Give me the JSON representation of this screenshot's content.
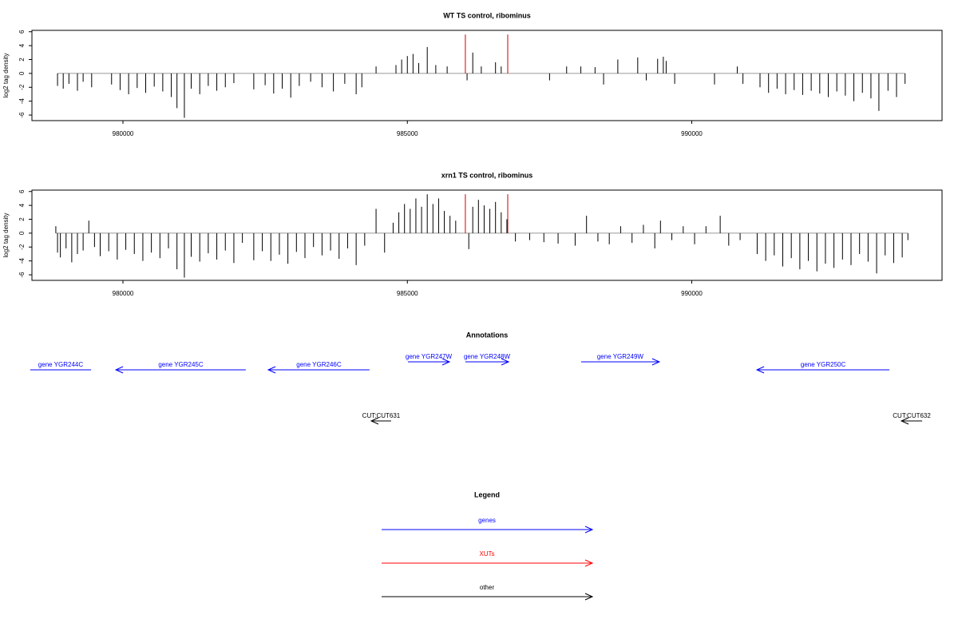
{
  "chart_data": [
    {
      "type": "bar",
      "title": "WT TS control, ribominus",
      "ylabel": "log2 tag density",
      "xlim": [
        978400,
        994400
      ],
      "ylim": [
        -6.8,
        6.2
      ],
      "xticks": [
        980000,
        985000,
        990000
      ],
      "yticks": [
        -6,
        -4,
        -2,
        0,
        2,
        4,
        6
      ],
      "color": "#000000",
      "baseline_color": "#999999",
      "x": [
        978850,
        978950,
        979050,
        979200,
        979300,
        979450,
        979800,
        979950,
        980100,
        980250,
        980400,
        980550,
        980700,
        980850,
        980950,
        981080,
        981200,
        981350,
        981500,
        981650,
        981800,
        981950,
        982300,
        982500,
        982650,
        982800,
        982950,
        983100,
        983300,
        983500,
        983700,
        983900,
        984100,
        984200,
        984450,
        984800,
        984900,
        985000,
        985100,
        985200,
        985350,
        985500,
        985700,
        986050,
        986150,
        986300,
        986550,
        986650,
        987500,
        987800,
        988050,
        988300,
        988450,
        988700,
        989050,
        989200,
        989400,
        989500,
        989550,
        989700,
        990400,
        990800,
        990900,
        991200,
        991350,
        991500,
        991650,
        991800,
        991950,
        992100,
        992250,
        992400,
        992550,
        992700,
        992850,
        993000,
        993150,
        993290,
        993450,
        993600,
        993750
      ],
      "values": [
        -1.8,
        -2.2,
        -1.5,
        -2.5,
        -1.2,
        -2.0,
        -1.6,
        -2.4,
        -3.0,
        -2.1,
        -2.8,
        -1.9,
        -2.6,
        -3.4,
        -5.0,
        -6.4,
        -2.2,
        -3.0,
        -1.8,
        -2.5,
        -2.0,
        -1.4,
        -2.3,
        -1.7,
        -2.9,
        -2.2,
        -3.5,
        -1.8,
        -1.2,
        -2.0,
        -2.6,
        -1.5,
        -3.0,
        -2.0,
        1.0,
        1.2,
        2.0,
        2.5,
        2.8,
        1.5,
        3.8,
        1.2,
        1.0,
        -1.0,
        3.0,
        1.0,
        1.6,
        1.0,
        -1.0,
        1.0,
        1.0,
        0.9,
        -1.6,
        2.0,
        2.3,
        -1.0,
        2.1,
        2.4,
        1.8,
        -1.5,
        -1.6,
        1.0,
        -1.5,
        -2.0,
        -2.8,
        -2.2,
        -3.0,
        -2.4,
        -3.1,
        -2.5,
        -2.9,
        -3.4,
        -2.6,
        -3.2,
        -4.0,
        -2.8,
        -3.6,
        -5.4,
        -2.5,
        -3.4,
        -1.5
      ],
      "highlight": {
        "color": "#cc0000",
        "x": [
          986020,
          986765
        ],
        "values": [
          5.6,
          5.6
        ]
      }
    },
    {
      "type": "bar",
      "title": "xrn1 TS control, ribominus",
      "ylabel": "log2 tag density",
      "xlim": [
        978400,
        994400
      ],
      "ylim": [
        -6.8,
        6.2
      ],
      "xticks": [
        980000,
        985000,
        990000
      ],
      "yticks": [
        -6,
        -4,
        -2,
        0,
        2,
        4,
        6
      ],
      "color": "#000000",
      "baseline_color": "#999999",
      "x": [
        978820,
        978850,
        978900,
        979000,
        979100,
        979200,
        979300,
        979400,
        979500,
        979600,
        979750,
        979900,
        980050,
        980200,
        980350,
        980500,
        980650,
        980800,
        980950,
        981080,
        981200,
        981350,
        981500,
        981650,
        981800,
        981950,
        982100,
        982300,
        982450,
        982600,
        982750,
        982900,
        983050,
        983200,
        983350,
        983500,
        983650,
        983800,
        983950,
        984100,
        984250,
        984450,
        984600,
        984750,
        984850,
        984950,
        985050,
        985150,
        985250,
        985350,
        985450,
        985550,
        985650,
        985750,
        985850,
        986080,
        986150,
        986250,
        986350,
        986450,
        986550,
        986650,
        986750,
        986900,
        987150,
        987400,
        987650,
        987950,
        988150,
        988350,
        988550,
        988750,
        988950,
        989150,
        989350,
        989450,
        989650,
        989850,
        990050,
        990250,
        990500,
        990650,
        990850,
        991150,
        991300,
        991450,
        991600,
        991750,
        991900,
        992050,
        992200,
        992350,
        992500,
        992650,
        992800,
        992950,
        993100,
        993250,
        993400,
        993550,
        993700,
        993800
      ],
      "values": [
        1.0,
        -2.8,
        -3.5,
        -2.2,
        -4.2,
        -3.0,
        -2.5,
        1.8,
        -2.0,
        -3.3,
        -2.6,
        -3.8,
        -2.4,
        -3.0,
        -4.0,
        -2.8,
        -3.6,
        -2.2,
        -5.2,
        -6.4,
        -3.4,
        -4.1,
        -2.9,
        -3.8,
        -2.5,
        -4.3,
        -1.4,
        -3.9,
        -2.6,
        -4.0,
        -3.1,
        -4.4,
        -2.7,
        -3.6,
        -2.0,
        -3.2,
        -2.5,
        -3.7,
        -2.2,
        -4.6,
        -1.8,
        3.5,
        -2.8,
        1.5,
        3.0,
        4.2,
        3.5,
        5.0,
        3.8,
        5.6,
        4.2,
        5.0,
        3.2,
        2.5,
        1.8,
        -2.3,
        3.8,
        4.8,
        4.0,
        3.5,
        4.5,
        3.0,
        2.0,
        -1.2,
        -1.0,
        -1.3,
        -1.5,
        -1.8,
        2.5,
        -1.2,
        -1.6,
        1.0,
        -1.4,
        1.2,
        -2.2,
        1.8,
        -1.0,
        1.0,
        -1.6,
        1.0,
        2.5,
        -1.8,
        -1.0,
        -3.0,
        -4.0,
        -3.2,
        -4.8,
        -3.6,
        -5.2,
        -4.0,
        -5.5,
        -4.4,
        -5.0,
        -3.8,
        -4.6,
        -3.0,
        -4.1,
        -5.8,
        -3.2,
        -4.3,
        -3.5,
        -1.0
      ],
      "highlight": {
        "color": "#cc0000",
        "x": [
          986020,
          986765
        ],
        "values": [
          5.6,
          5.6
        ]
      }
    }
  ],
  "annotations": {
    "title": "Annotations",
    "items": [
      {
        "label": "gene YGR244C",
        "start": 978370,
        "end": 979440,
        "strand": "-",
        "kind": "genes"
      },
      {
        "label": "gene YGR245C",
        "start": 979875,
        "end": 982160,
        "strand": "-",
        "kind": "genes"
      },
      {
        "label": "gene YGR246C",
        "start": 982555,
        "end": 984335,
        "strand": "-",
        "kind": "genes"
      },
      {
        "label": "gene YGR247W",
        "start": 985010,
        "end": 985740,
        "strand": "+",
        "kind": "genes"
      },
      {
        "label": "gene YGR248W",
        "start": 986020,
        "end": 986780,
        "strand": "+",
        "kind": "genes"
      },
      {
        "label": "gene YGR249W",
        "start": 988055,
        "end": 989430,
        "strand": "+",
        "kind": "genes"
      },
      {
        "label": "gene YGR250C",
        "start": 991145,
        "end": 993475,
        "strand": "-",
        "kind": "genes"
      },
      {
        "label": "CUT:CUT631",
        "start": 984365,
        "end": 984715,
        "strand": "-",
        "kind": "other"
      },
      {
        "label": "CUT:CUT632",
        "start": 993685,
        "end": 994050,
        "strand": "-",
        "kind": "other"
      }
    ]
  },
  "legend": {
    "title": "Legend",
    "items": [
      {
        "label": "genes",
        "color": "#0000ff"
      },
      {
        "label": "XUTs",
        "color": "#ff0000"
      },
      {
        "label": "other",
        "color": "#000000"
      }
    ]
  }
}
